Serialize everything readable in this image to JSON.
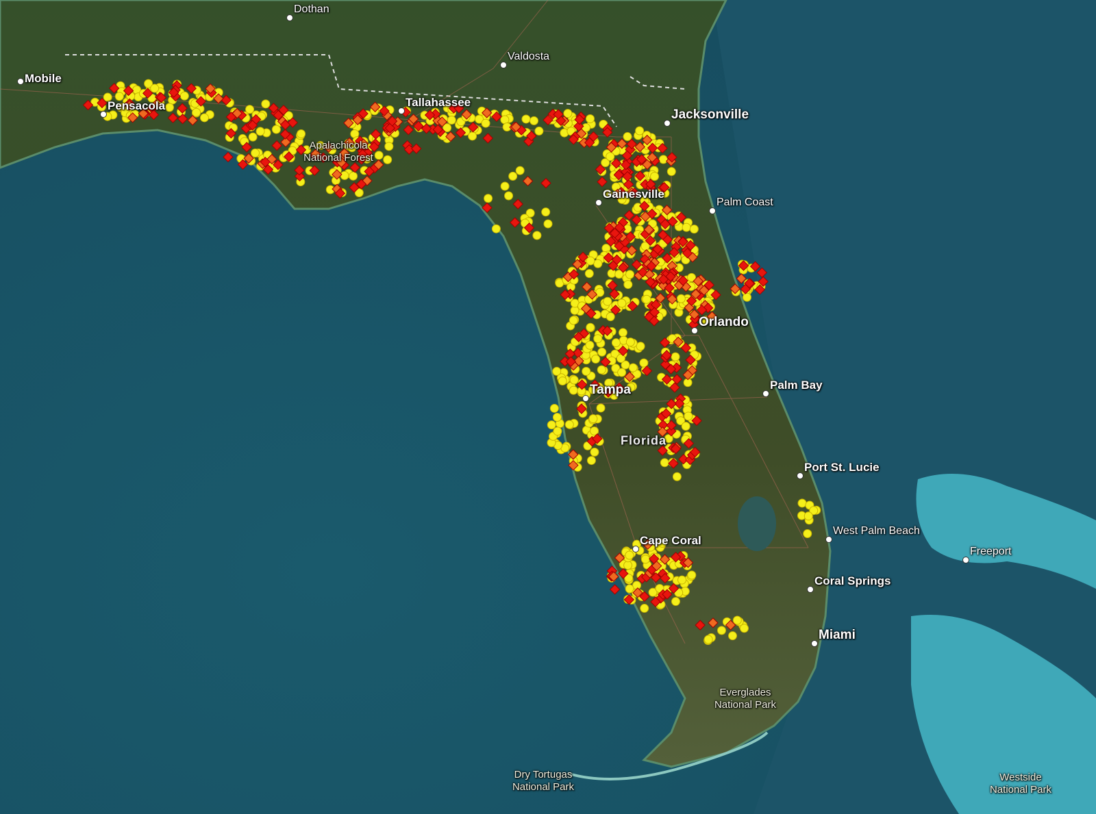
{
  "map": {
    "basemap": "satellite imagery",
    "colors": {
      "water": "#1f5a6b",
      "deep_water": "#16475a",
      "land": "#3b4a26",
      "shallow": "#3fa8b8"
    },
    "markers": {
      "circle": {
        "icon": "circle-marker",
        "color": "#f5ef1a",
        "outline": "#c9b400"
      },
      "diamond": {
        "icon": "diamond-marker",
        "color": "#e8150e",
        "alt_color": "#f06a20",
        "outline": "#a00000"
      }
    },
    "cities": [
      {
        "name": "Dothan",
        "bold": false
      },
      {
        "name": "Valdosta",
        "bold": false
      },
      {
        "name": "Mobile",
        "bold": true
      },
      {
        "name": "Pensacola",
        "bold": true
      },
      {
        "name": "Tallahassee",
        "bold": true
      },
      {
        "name": "Jacksonville",
        "bold": true
      },
      {
        "name": "Gainesville",
        "bold": true
      },
      {
        "name": "Palm Coast",
        "bold": false
      },
      {
        "name": "Orlando",
        "bold": true
      },
      {
        "name": "Palm Bay",
        "bold": true
      },
      {
        "name": "Tampa",
        "bold": true
      },
      {
        "name": "Port St. Lucie",
        "bold": true
      },
      {
        "name": "West Palm Beach",
        "bold": false
      },
      {
        "name": "Freeport",
        "bold": false
      },
      {
        "name": "Cape Coral",
        "bold": true
      },
      {
        "name": "Coral Springs",
        "bold": true
      },
      {
        "name": "Miami",
        "bold": true
      }
    ],
    "parks": [
      {
        "line1": "Apalachicola",
        "line2": "National Forest"
      },
      {
        "line1": "Everglades",
        "line2": "National Park"
      },
      {
        "line1": "Dry Tortugas",
        "line2": "National Park"
      },
      {
        "line1": "Westside",
        "line2": "National Park"
      }
    ],
    "region_label": "Florida"
  }
}
